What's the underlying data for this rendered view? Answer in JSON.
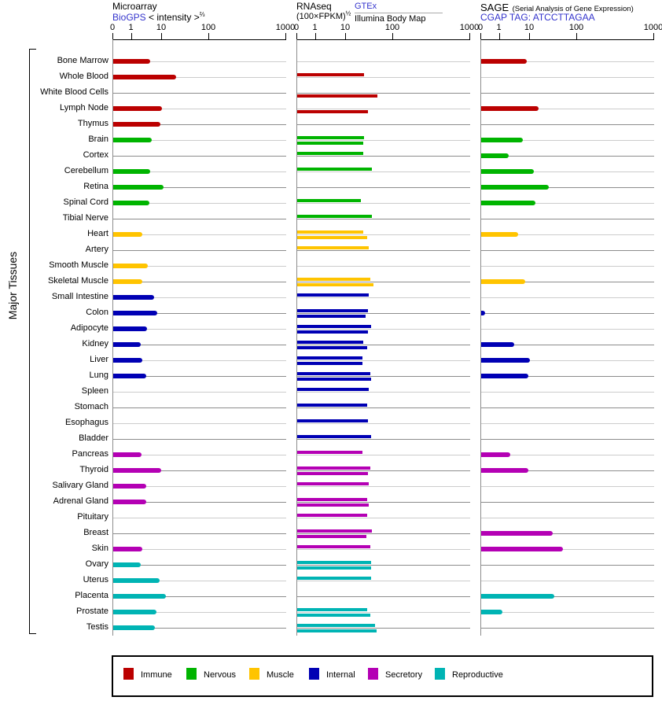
{
  "y_axis_label": "Major Tissues",
  "panels": [
    {
      "id": "microarray",
      "title": "Microarray",
      "source": "BioGPS",
      "unit": "< intensity >",
      "exponent": "⅔",
      "axis_ticks": [
        "0",
        "1",
        "10",
        "100",
        "1000"
      ]
    },
    {
      "id": "rnaseq",
      "title": "RNAseq",
      "unit": "(100×FPKM)",
      "exponent": "½",
      "source1": "GTEx",
      "source2": "Illumina Body Map",
      "axis_ticks": [
        "0",
        "1",
        "10",
        "100",
        "1000"
      ]
    },
    {
      "id": "sage",
      "title": "SAGE",
      "subtitle": "(Serial Analysis of Gene Expression)",
      "source": "CGAP",
      "tag": "TAG: ATCCTTAGAA",
      "axis_ticks": [
        "0",
        "1",
        "10",
        "100",
        "1000"
      ]
    }
  ],
  "legend": [
    {
      "label": "Immune",
      "color": "#bb0000"
    },
    {
      "label": "Nervous",
      "color": "#00b400"
    },
    {
      "label": "Muscle",
      "color": "#ffc400"
    },
    {
      "label": "Internal",
      "color": "#0000b4"
    },
    {
      "label": "Secretory",
      "color": "#b400b4"
    },
    {
      "label": "Reproductive",
      "color": "#00b4b4"
    }
  ],
  "chart_data": {
    "type": "bar",
    "orientation": "horizontal",
    "scale_note": "shared axis per panel: 0,1,10,100,1000 (power/log-like scale)",
    "axis_range": [
      0,
      1000
    ],
    "panel_series": [
      "microarray (BioGPS)",
      "rnaseq GTEx",
      "rnaseq Illumina Body Map",
      "sage (CGAP)"
    ],
    "tissues": [
      {
        "name": "Bone Marrow",
        "category": "Immune",
        "microarray": 4,
        "rnaseq_gtex": null,
        "rnaseq_illumina": null,
        "sage": 8
      },
      {
        "name": "Whole Blood",
        "category": "Immune",
        "microarray": 20,
        "rnaseq_gtex": 24,
        "rnaseq_illumina": null,
        "sage": null
      },
      {
        "name": "White Blood Cells",
        "category": "Immune",
        "microarray": null,
        "rnaseq_gtex": null,
        "rnaseq_illumina": 47,
        "sage": null
      },
      {
        "name": "Lymph Node",
        "category": "Immune",
        "microarray": 10,
        "rnaseq_gtex": null,
        "rnaseq_illumina": 29,
        "sage": 15
      },
      {
        "name": "Thymus",
        "category": "Immune",
        "microarray": 9,
        "rnaseq_gtex": null,
        "rnaseq_illumina": null,
        "sage": null
      },
      {
        "name": "Brain",
        "category": "Nervous",
        "microarray": 4.5,
        "rnaseq_gtex": 24,
        "rnaseq_illumina": 23,
        "sage": 6
      },
      {
        "name": "Cortex",
        "category": "Nervous",
        "microarray": null,
        "rnaseq_gtex": 23,
        "rnaseq_illumina": null,
        "sage": 2
      },
      {
        "name": "Cerebellum",
        "category": "Nervous",
        "microarray": 4,
        "rnaseq_gtex": 35,
        "rnaseq_illumina": null,
        "sage": 12
      },
      {
        "name": "Retina",
        "category": "Nervous",
        "microarray": 11,
        "rnaseq_gtex": null,
        "rnaseq_illumina": null,
        "sage": 25
      },
      {
        "name": "Spinal Cord",
        "category": "Nervous",
        "microarray": 3.8,
        "rnaseq_gtex": 21,
        "rnaseq_illumina": null,
        "sage": 13
      },
      {
        "name": "Tibial Nerve",
        "category": "Nervous",
        "microarray": null,
        "rnaseq_gtex": 35,
        "rnaseq_illumina": null,
        "sage": null
      },
      {
        "name": "Heart",
        "category": "Muscle",
        "microarray": 2.2,
        "rnaseq_gtex": 23,
        "rnaseq_illumina": 28,
        "sage": 4
      },
      {
        "name": "Artery",
        "category": "Muscle",
        "microarray": null,
        "rnaseq_gtex": 30,
        "rnaseq_illumina": null,
        "sage": null
      },
      {
        "name": "Smooth Muscle",
        "category": "Muscle",
        "microarray": 3.5,
        "rnaseq_gtex": null,
        "rnaseq_illumina": null,
        "sage": null
      },
      {
        "name": "Skeletal Muscle",
        "category": "Muscle",
        "microarray": 2.3,
        "rnaseq_gtex": 33,
        "rnaseq_illumina": 38,
        "sage": 7
      },
      {
        "name": "Small Intestine",
        "category": "Internal",
        "microarray": 5.5,
        "rnaseq_gtex": 30,
        "rnaseq_illumina": null,
        "sage": null
      },
      {
        "name": "Colon",
        "category": "Internal",
        "microarray": 7,
        "rnaseq_gtex": 29,
        "rnaseq_illumina": 26,
        "sage": 0.2
      },
      {
        "name": "Adipocyte",
        "category": "Internal",
        "microarray": 3.2,
        "rnaseq_gtex": 34,
        "rnaseq_illumina": 29,
        "sage": null
      },
      {
        "name": "Kidney",
        "category": "Internal",
        "microarray": 2,
        "rnaseq_gtex": 23,
        "rnaseq_illumina": 28,
        "sage": 3
      },
      {
        "name": "Liver",
        "category": "Internal",
        "microarray": 2.3,
        "rnaseq_gtex": 22,
        "rnaseq_illumina": 22,
        "sage": 10
      },
      {
        "name": "Lung",
        "category": "Internal",
        "microarray": 3,
        "rnaseq_gtex": 33,
        "rnaseq_illumina": 34,
        "sage": 9
      },
      {
        "name": "Spleen",
        "category": "Internal",
        "microarray": null,
        "rnaseq_gtex": 31,
        "rnaseq_illumina": null,
        "sage": null
      },
      {
        "name": "Stomach",
        "category": "Internal",
        "microarray": null,
        "rnaseq_gtex": 28,
        "rnaseq_illumina": null,
        "sage": null
      },
      {
        "name": "Esophagus",
        "category": "Internal",
        "microarray": null,
        "rnaseq_gtex": 29,
        "rnaseq_illumina": null,
        "sage": null
      },
      {
        "name": "Bladder",
        "category": "Internal",
        "microarray": null,
        "rnaseq_gtex": 34,
        "rnaseq_illumina": null,
        "sage": null
      },
      {
        "name": "Pancreas",
        "category": "Secretory",
        "microarray": 2.1,
        "rnaseq_gtex": 22,
        "rnaseq_illumina": null,
        "sage": 2.3
      },
      {
        "name": "Thyroid",
        "category": "Secretory",
        "microarray": 9.5,
        "rnaseq_gtex": 33,
        "rnaseq_illumina": 29,
        "sage": 9
      },
      {
        "name": "Salivary Gland",
        "category": "Secretory",
        "microarray": 3,
        "rnaseq_gtex": 31,
        "rnaseq_illumina": null,
        "sage": null
      },
      {
        "name": "Adrenal Gland",
        "category": "Secretory",
        "microarray": 3,
        "rnaseq_gtex": 28,
        "rnaseq_illumina": 31,
        "sage": null
      },
      {
        "name": "Pituitary",
        "category": "Secretory",
        "microarray": null,
        "rnaseq_gtex": 28,
        "rnaseq_illumina": null,
        "sage": null
      },
      {
        "name": "Breast",
        "category": "Secretory",
        "microarray": null,
        "rnaseq_gtex": 35,
        "rnaseq_illumina": 27,
        "sage": 30
      },
      {
        "name": "Skin",
        "category": "Secretory",
        "microarray": 2.2,
        "rnaseq_gtex": 33,
        "rnaseq_illumina": null,
        "sage": 50
      },
      {
        "name": "Ovary",
        "category": "Reproductive",
        "microarray": 2,
        "rnaseq_gtex": 34,
        "rnaseq_illumina": 34,
        "sage": null
      },
      {
        "name": "Uterus",
        "category": "Reproductive",
        "microarray": 8.5,
        "rnaseq_gtex": 34,
        "rnaseq_illumina": null,
        "sage": null
      },
      {
        "name": "Placenta",
        "category": "Reproductive",
        "microarray": 12,
        "rnaseq_gtex": null,
        "rnaseq_illumina": null,
        "sage": 33
      },
      {
        "name": "Prostate",
        "category": "Reproductive",
        "microarray": 6.5,
        "rnaseq_gtex": 28,
        "rnaseq_illumina": 33,
        "sage": 1.2
      },
      {
        "name": "Testis",
        "category": "Reproductive",
        "microarray": 5.7,
        "rnaseq_gtex": 42,
        "rnaseq_illumina": 45,
        "sage": null
      }
    ]
  }
}
